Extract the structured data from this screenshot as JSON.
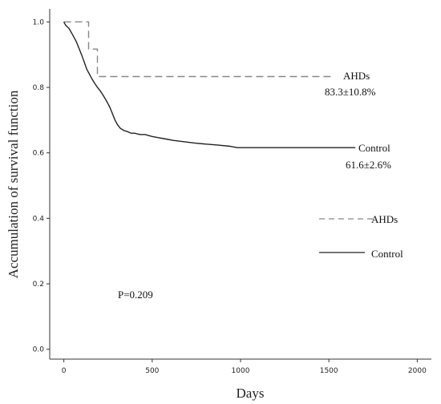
{
  "chart_data": {
    "type": "line",
    "title": "",
    "xlabel": "Days",
    "ylabel": "Accumulation of survival function",
    "xlim": [
      -80,
      2080
    ],
    "ylim": [
      -0.03,
      1.04
    ],
    "x_ticks": [
      "0",
      "500",
      "1000",
      "1500",
      "2000"
    ],
    "y_ticks": [
      "0.0",
      "0.2",
      "0.4",
      "0.6",
      "0.8",
      "1.0"
    ],
    "grid": false,
    "legend_position": "right",
    "series": [
      {
        "name": "AHDs",
        "style": "dashed",
        "color": "#888888",
        "x": [
          0,
          140,
          140,
          190,
          190,
          1530
        ],
        "y": [
          1.0,
          1.0,
          0.917,
          0.917,
          0.833,
          0.833
        ]
      },
      {
        "name": "Control",
        "style": "solid",
        "color": "#222222",
        "x": [
          0,
          10,
          20,
          30,
          40,
          55,
          70,
          85,
          100,
          110,
          120,
          130,
          140,
          150,
          160,
          175,
          190,
          205,
          220,
          240,
          260,
          275,
          290,
          305,
          320,
          340,
          360,
          380,
          400,
          430,
          460,
          500,
          540,
          580,
          620,
          680,
          740,
          800,
          870,
          940,
          980,
          1100,
          1300,
          1500,
          1650
        ],
        "y": [
          1.0,
          0.99,
          0.985,
          0.98,
          0.97,
          0.955,
          0.94,
          0.92,
          0.9,
          0.885,
          0.87,
          0.855,
          0.845,
          0.835,
          0.825,
          0.812,
          0.8,
          0.79,
          0.778,
          0.76,
          0.74,
          0.72,
          0.7,
          0.685,
          0.675,
          0.668,
          0.665,
          0.66,
          0.66,
          0.656,
          0.656,
          0.65,
          0.646,
          0.642,
          0.638,
          0.634,
          0.63,
          0.627,
          0.624,
          0.62,
          0.616,
          0.616,
          0.616,
          0.616,
          0.616
        ]
      }
    ],
    "annotations": {
      "ahds_label": "AHDs",
      "ahds_value": "83.3±10.8%",
      "control_label": "Control",
      "control_value": "61.6±2.6%",
      "p_value": "P=0.209"
    },
    "legend": [
      {
        "name": "AHDs",
        "style": "dashed"
      },
      {
        "name": "Control",
        "style": "solid"
      }
    ]
  }
}
